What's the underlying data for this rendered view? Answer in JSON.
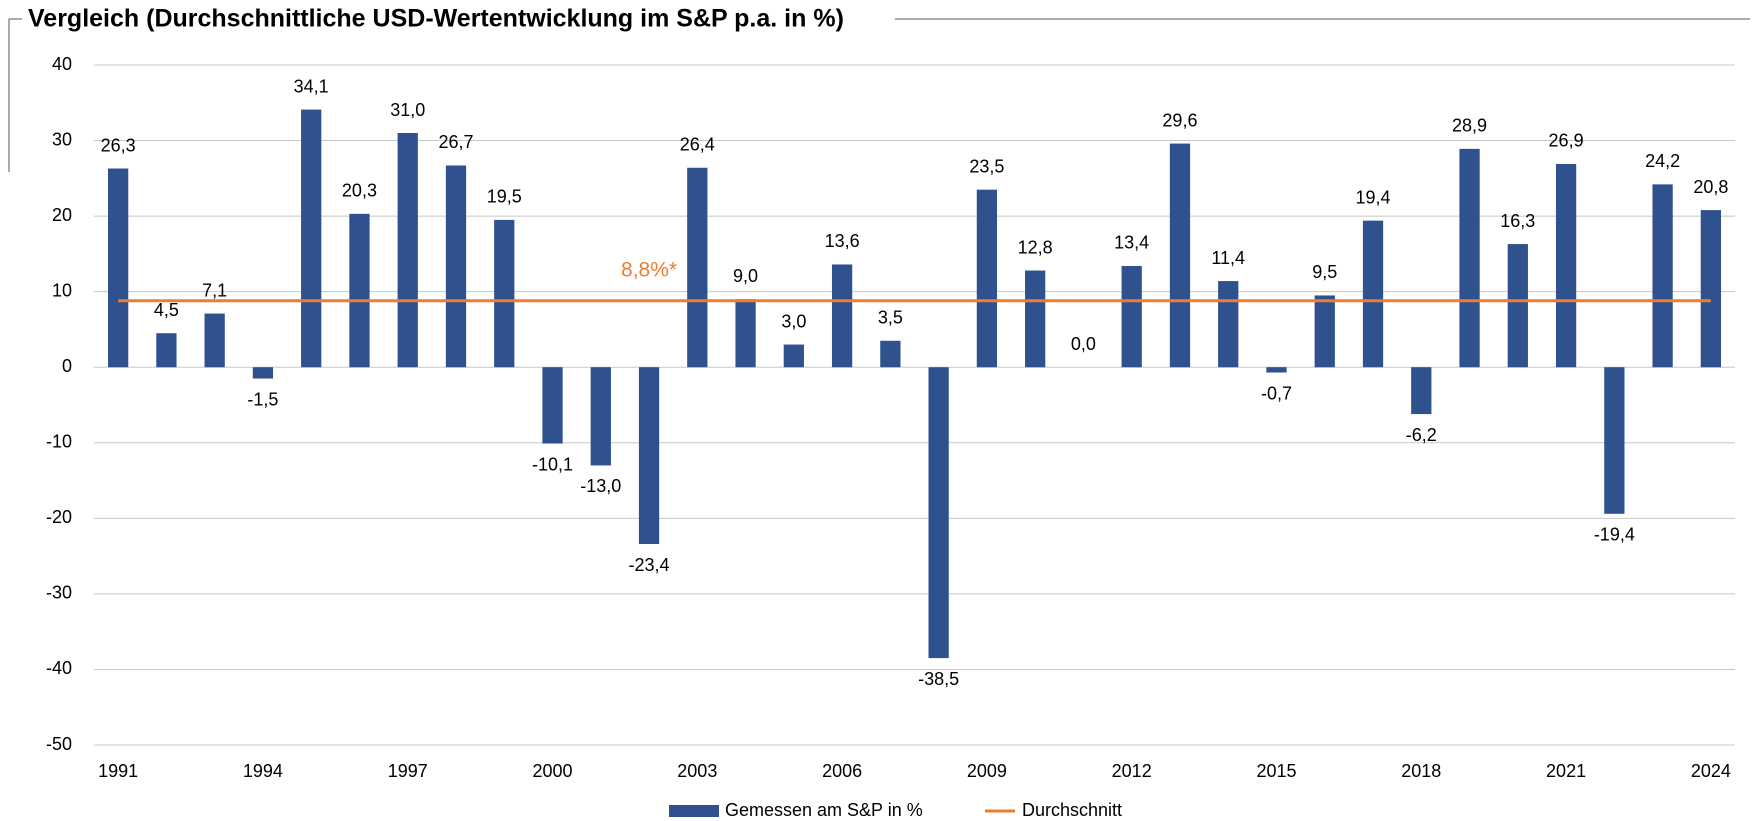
{
  "chart_data": {
    "type": "bar",
    "title": "Vergleich (Durchschnittliche USD-Wertentwicklung im S&P p.a. in %)",
    "categories": [
      "1991",
      null,
      null,
      "1994",
      null,
      null,
      "1997",
      null,
      null,
      "2000",
      null,
      null,
      "2003",
      null,
      null,
      "2006",
      null,
      null,
      "2009",
      null,
      null,
      "2012",
      null,
      null,
      "2015",
      null,
      null,
      "2018",
      null,
      null,
      "2021",
      null,
      null,
      "2024"
    ],
    "series": [
      {
        "name": "Gemessen am S&P in %",
        "color": "#2f528f",
        "values": [
          26.3,
          4.5,
          7.1,
          -1.5,
          34.1,
          20.3,
          31.0,
          26.7,
          19.5,
          -10.1,
          -13.0,
          -23.4,
          26.4,
          9.0,
          3.0,
          13.6,
          3.5,
          -38.5,
          23.5,
          12.8,
          0.0,
          13.4,
          29.6,
          11.4,
          -0.7,
          9.5,
          19.4,
          -6.2,
          28.9,
          16.3,
          26.9,
          -19.4,
          24.2,
          20.8
        ],
        "value_labels": [
          "26,3",
          "4,5",
          "7,1",
          "-1,5",
          "34,1",
          "20,3",
          "31,0",
          "26,7",
          "19,5",
          "-10,1",
          "-13,0",
          "-23,4",
          "26,4",
          "9,0",
          "3,0",
          "13,6",
          "3,5",
          "-38,5",
          "23,5",
          "12,8",
          "0,0",
          "13,4",
          "29,6",
          "11,4",
          "-0,7",
          "9,5",
          "19,4",
          "-6,2",
          "28,9",
          "16,3",
          "26,9",
          "-19,4",
          "24,2",
          "20,8"
        ]
      }
    ],
    "average": {
      "name": "Durchschnitt",
      "color": "#ed7d31",
      "value": 8.8,
      "label": "8,8%*"
    },
    "ylim": [
      -50,
      40
    ],
    "yticks": [
      -50,
      -40,
      -30,
      -20,
      -10,
      0,
      10,
      20,
      30,
      40
    ],
    "grid": true
  }
}
